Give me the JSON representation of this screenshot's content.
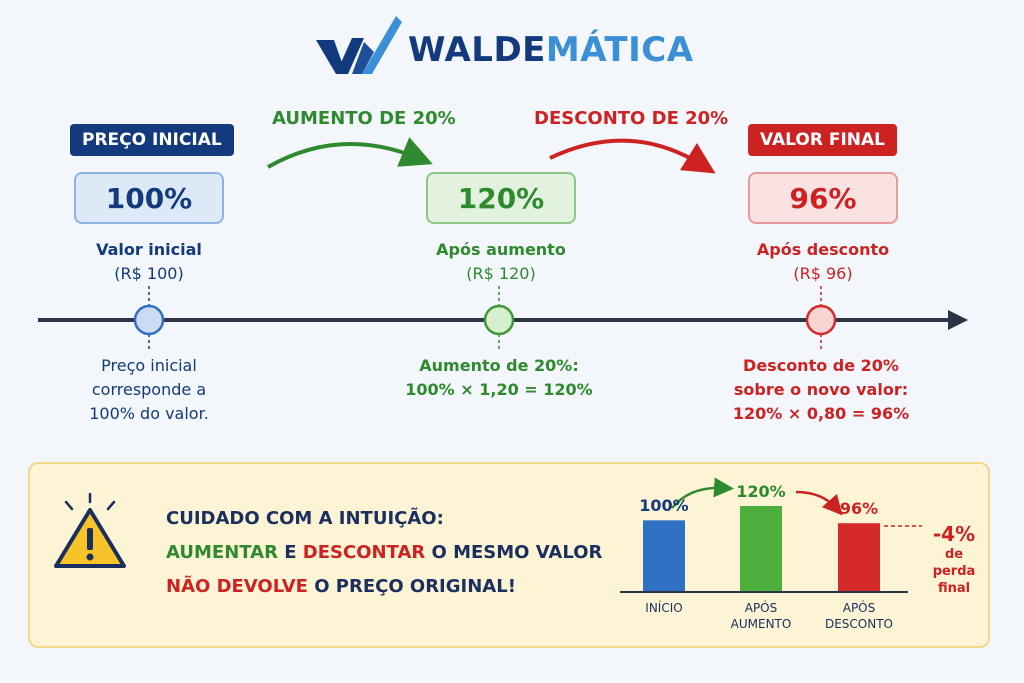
{
  "brand": {
    "name_part1": "WALDE",
    "name_part2": "MÁTICA",
    "colors": {
      "navy": "#133a7c",
      "sky": "#3a8fd6"
    }
  },
  "steps": {
    "initial": {
      "label": "PREÇO INICIAL",
      "value": "100%",
      "caption_title": "Valor inicial",
      "caption_amount": "(R$ 100)",
      "note_lines": [
        "Preço inicial",
        "corresponde a",
        "100% do valor."
      ],
      "color": "#133a7c"
    },
    "increase": {
      "arrow_label": "AUMENTO DE 20%",
      "value": "120%",
      "caption_title": "Após aumento",
      "caption_amount": "(R$ 120)",
      "note_lines": [
        "Aumento de 20%:",
        "100% × 1,20 = 120%"
      ],
      "color": "#2f8a2f"
    },
    "discount": {
      "arrow_label": "DESCONTO DE 20%"
    },
    "final": {
      "label": "VALOR FINAL",
      "value": "96%",
      "caption_title": "Após desconto",
      "caption_amount": "(R$ 96)",
      "note_lines": [
        "Desconto de 20%",
        "sobre o novo valor:",
        "120% × 0,80 = 96%"
      ],
      "color": "#cc2222"
    }
  },
  "warning": {
    "icon": "warning-triangle-icon",
    "heading": "CUIDADO COM A INTUIÇÃO:",
    "line2_part1": "AUMENTAR",
    "line2_part2": " E ",
    "line2_part3": "DESCONTAR",
    "line2_part4": " O MESMO VALOR",
    "line3_part1": "NÃO DEVOLVE",
    "line3_part2": " O PREÇO ORIGINAL!"
  },
  "chart_data": {
    "type": "bar",
    "categories": [
      "INÍCIO",
      "APÓS AUMENTO",
      "APÓS DESCONTO"
    ],
    "category_lines": [
      [
        "INÍCIO"
      ],
      [
        "APÓS",
        "AUMENTO"
      ],
      [
        "APÓS",
        "DESCONTO"
      ]
    ],
    "values": [
      100,
      120,
      96
    ],
    "value_labels": [
      "100%",
      "120%",
      "96%"
    ],
    "colors": [
      "#2f6fc4",
      "#4caf3c",
      "#d62a2a"
    ],
    "ylim": [
      0,
      130
    ],
    "annotation": {
      "value": "-4%",
      "text_lines": [
        "de perda",
        "final"
      ]
    }
  }
}
